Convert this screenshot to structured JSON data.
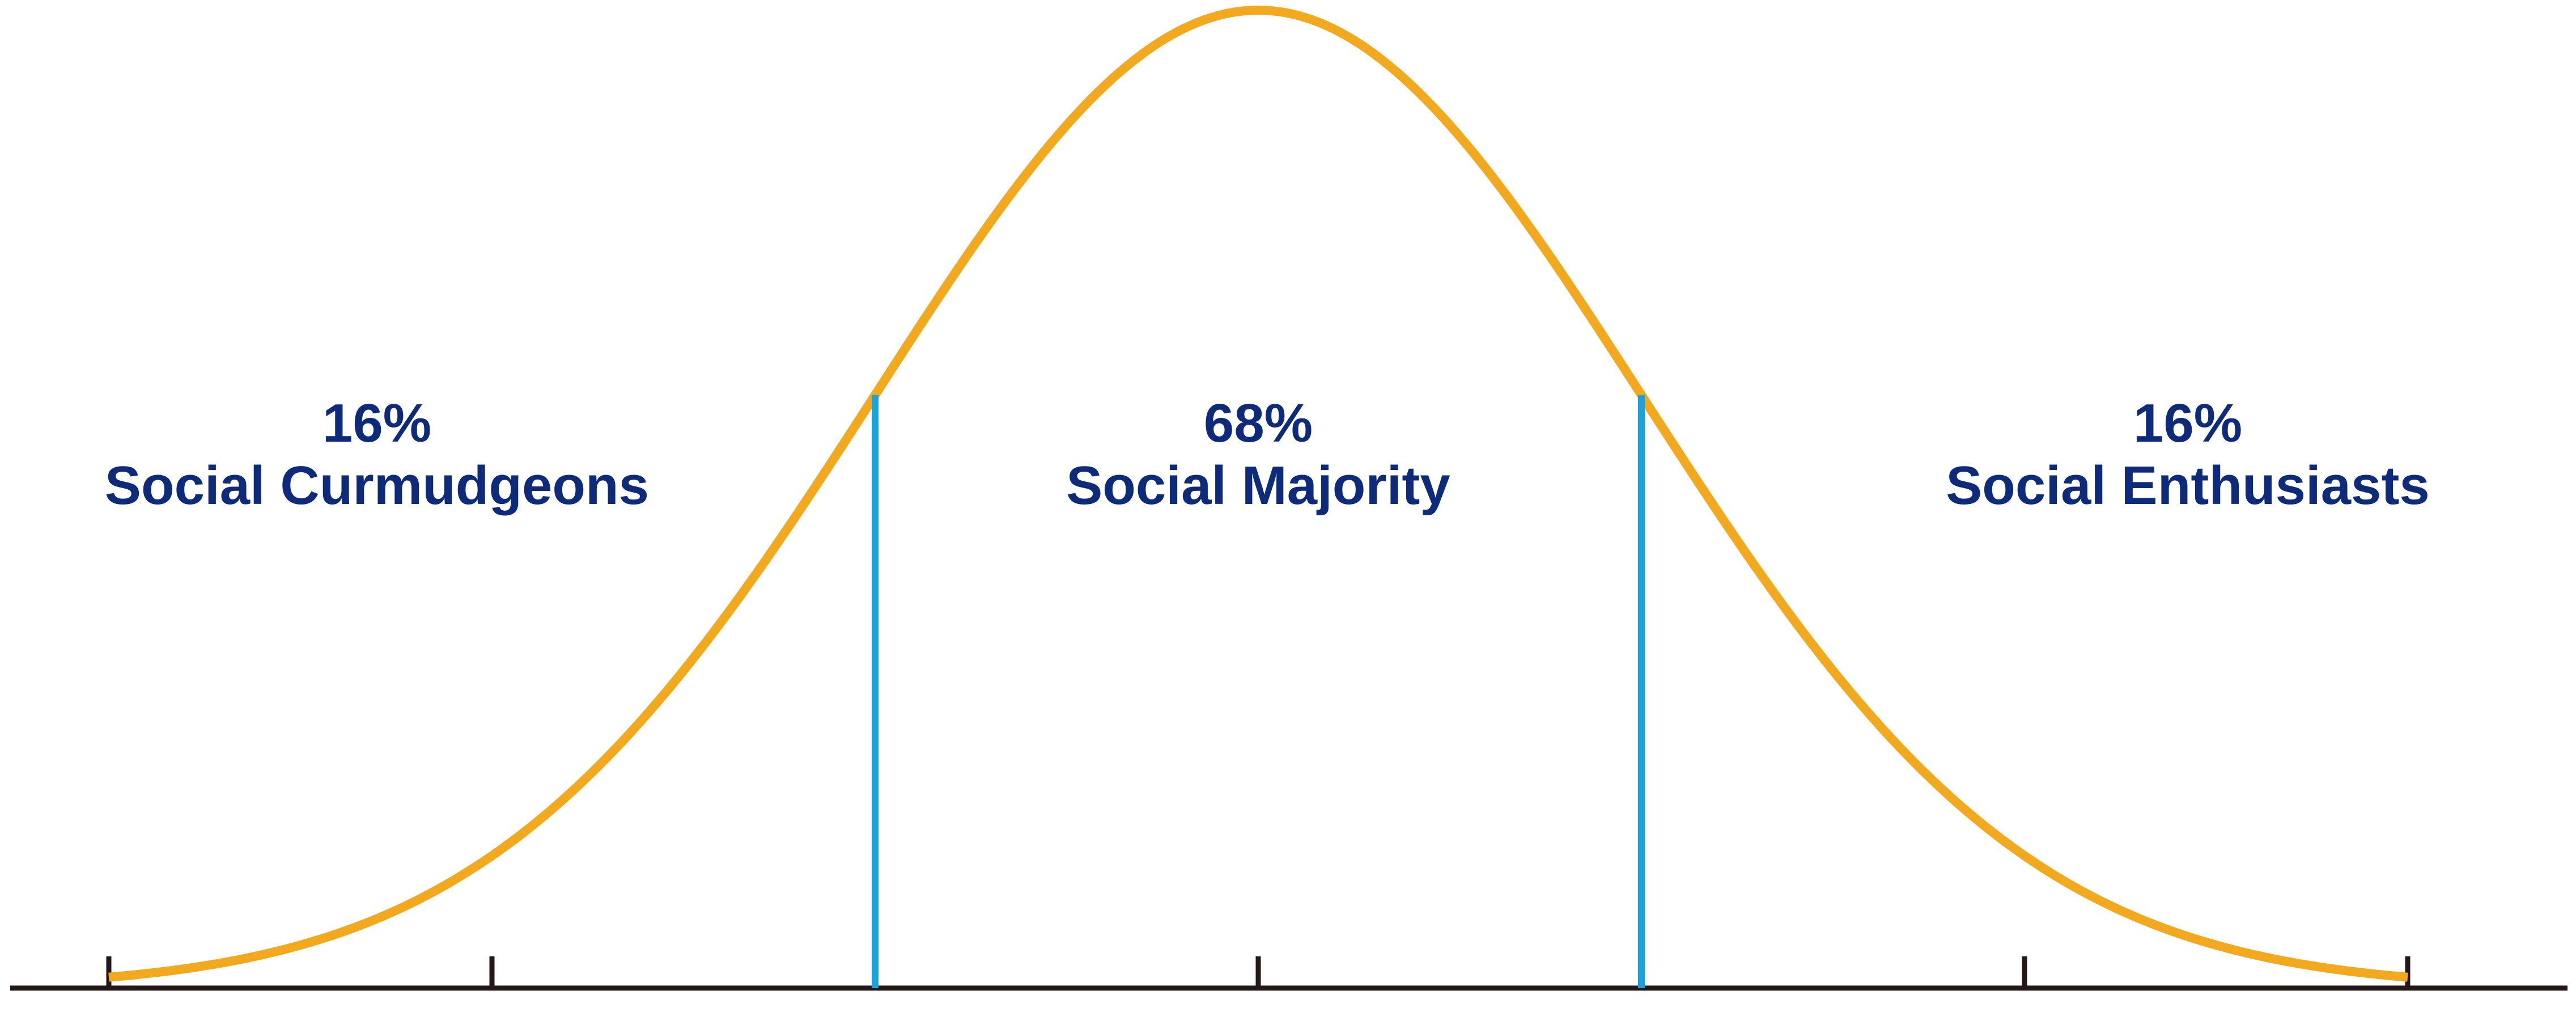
{
  "chart_data": {
    "type": "area",
    "title": "",
    "xlabel": "",
    "ylabel": "",
    "distribution": "normal",
    "x_range_sd": [
      -3,
      3
    ],
    "ticks_sd": [
      -3,
      -2,
      -1,
      0,
      1,
      2,
      3
    ],
    "boundaries_sd": [
      -1,
      1
    ],
    "regions": [
      {
        "percent": "16%",
        "name": "Social Curmudgeons"
      },
      {
        "percent": "68%",
        "name": "Social Majority"
      },
      {
        "percent": "16%",
        "name": "Social Enthusiasts"
      }
    ],
    "grid": false
  },
  "colors": {
    "curve": "#F2A91E",
    "boundary": "#1AA3DB",
    "label": "#0D2B7A",
    "axis": "#231815"
  }
}
